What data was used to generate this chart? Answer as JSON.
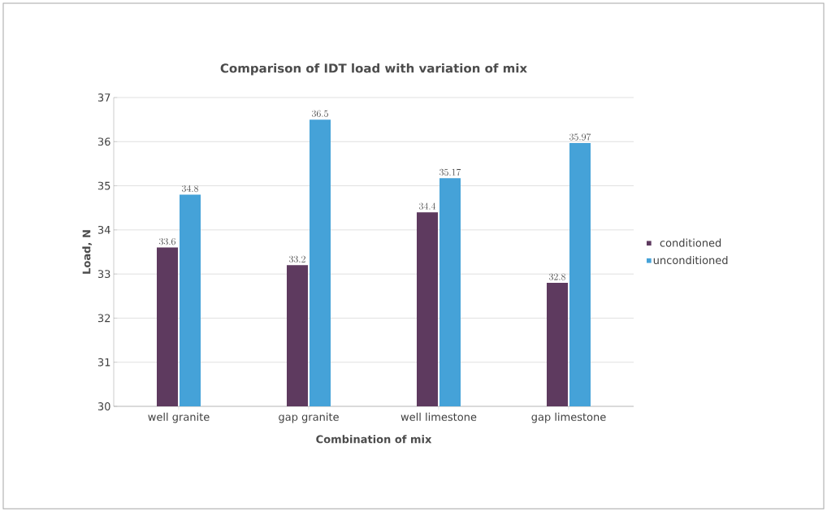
{
  "chart_data": {
    "type": "bar",
    "title": "Comparison of IDT load with variation of mix",
    "xlabel": "Combination of mix",
    "ylabel": "Load, N",
    "categories": [
      "well granite",
      "gap granite",
      "well limestone",
      "gap limestone"
    ],
    "series": [
      {
        "name": "conditioned",
        "color": "#5e3a5f",
        "values": [
          33.6,
          33.2,
          34.4,
          32.8
        ]
      },
      {
        "name": "unconditioned",
        "color": "#45a2d8",
        "values": [
          34.8,
          36.5,
          35.17,
          35.97
        ]
      }
    ],
    "ylim": [
      30,
      37
    ],
    "yticks": [
      30,
      31,
      32,
      33,
      34,
      35,
      36,
      37
    ],
    "grid": "y",
    "legend": "right",
    "data_labels": true
  }
}
